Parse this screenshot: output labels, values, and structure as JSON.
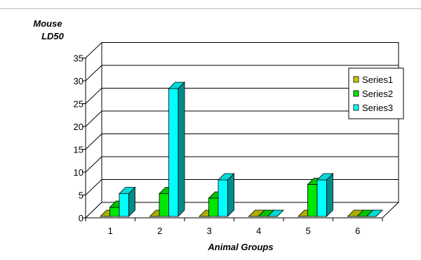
{
  "chart_data": {
    "type": "bar",
    "variant": "3d-clustered-column",
    "title": "",
    "ylabel_lines": [
      "Mouse",
      "LD50"
    ],
    "xlabel": "Animal Groups",
    "categories": [
      "1",
      "2",
      "3",
      "4",
      "5",
      "6"
    ],
    "ylim": [
      0,
      35
    ],
    "yticks": [
      0,
      5,
      10,
      15,
      20,
      25,
      30,
      35
    ],
    "grid": true,
    "legend_position": "right",
    "series": [
      {
        "name": "Series1",
        "color": "#cccc00",
        "values": [
          0,
          0,
          0,
          0,
          0,
          0
        ]
      },
      {
        "name": "Series2",
        "color": "#00e600",
        "values": [
          2,
          5,
          4,
          0,
          7,
          0
        ]
      },
      {
        "name": "Series3",
        "color": "#00ffff",
        "values": [
          5,
          28,
          8,
          0,
          8,
          0
        ]
      }
    ]
  }
}
